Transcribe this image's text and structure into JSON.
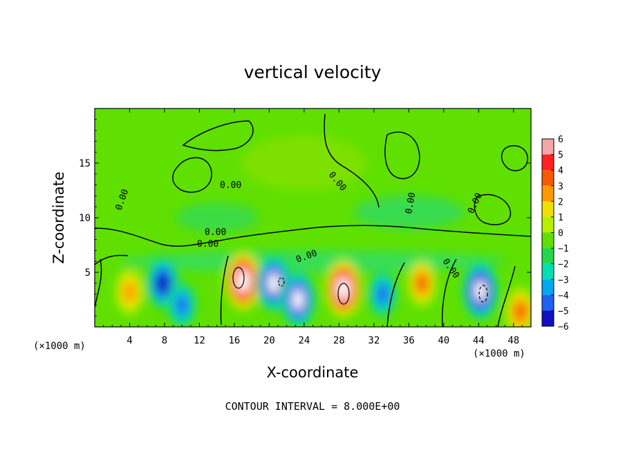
{
  "chart_data": {
    "type": "heatmap",
    "title": "vertical velocity",
    "xlabel": "X-coordinate",
    "ylabel": "Z-coordinate",
    "x_unit_note": "(×1000 m)",
    "xlim": [
      0,
      50
    ],
    "ylim": [
      0,
      20
    ],
    "x_ticks": [
      4,
      8,
      12,
      16,
      20,
      24,
      28,
      32,
      36,
      40,
      44,
      48
    ],
    "y_ticks": [
      5,
      10,
      15
    ],
    "colorbar": {
      "levels": [
        6,
        5,
        4,
        3,
        2,
        1,
        0,
        -1,
        -2,
        -3,
        -4,
        -5,
        -6
      ],
      "colors": [
        "#f4a6a6",
        "#f22",
        "#f55a00",
        "#ff9900",
        "#f0e000",
        "#b8ef00",
        "#5fe000",
        "#22d84a",
        "#00e0b0",
        "#00a8f0",
        "#2060f0",
        "#1010c0",
        "#8000b0"
      ]
    },
    "contour_label": "0.00",
    "footnote": "CONTOUR INTERVAL = 8.000E+00",
    "features": [
      {
        "x": 4,
        "z": 3.2,
        "w": 3.0
      },
      {
        "x": 7.8,
        "z": 4.0,
        "w": -5.2
      },
      {
        "x": 10,
        "z": 2.0,
        "w": -3.5
      },
      {
        "x": 17,
        "z": 4.2,
        "w": 7.5
      },
      {
        "x": 20.5,
        "z": 4.0,
        "w": -7.0
      },
      {
        "x": 23.3,
        "z": 2.5,
        "w": -6.8
      },
      {
        "x": 28.5,
        "z": 3.5,
        "w": 7.2
      },
      {
        "x": 33,
        "z": 3.0,
        "w": -3.6
      },
      {
        "x": 37.5,
        "z": 4.0,
        "w": 3.2
      },
      {
        "x": 44.2,
        "z": 3.3,
        "w": -7.2
      },
      {
        "x": 48.8,
        "z": 1.4,
        "w": 3.8
      }
    ]
  }
}
